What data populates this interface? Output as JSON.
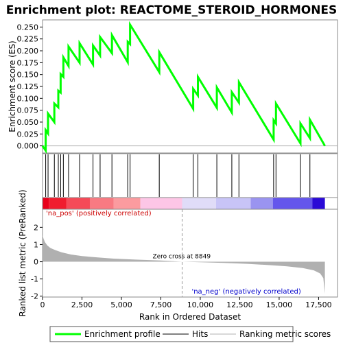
{
  "chart_data": {
    "type": "line",
    "title": "Enrichment plot: REACTOME_STEROID_HORMONES",
    "es_panel": {
      "ylabel": "Enrichment score (ES)",
      "ylim": [
        -0.015,
        0.265
      ],
      "yticks": [
        "0.000",
        "0.025",
        "0.050",
        "0.075",
        "0.100",
        "0.125",
        "0.150",
        "0.175",
        "0.200",
        "0.225",
        "0.250"
      ],
      "series_name": "Enrichment profile",
      "color": "#00ff00",
      "points": [
        [
          0,
          0.0
        ],
        [
          200,
          -0.01
        ],
        [
          200,
          0.033
        ],
        [
          350,
          0.026
        ],
        [
          350,
          0.068
        ],
        [
          750,
          0.05
        ],
        [
          750,
          0.089
        ],
        [
          1000,
          0.081
        ],
        [
          1000,
          0.116
        ],
        [
          1150,
          0.112
        ],
        [
          1150,
          0.151
        ],
        [
          1320,
          0.145
        ],
        [
          1320,
          0.186
        ],
        [
          1650,
          0.168
        ],
        [
          1650,
          0.209
        ],
        [
          2350,
          0.175
        ],
        [
          2350,
          0.216
        ],
        [
          3200,
          0.171
        ],
        [
          3200,
          0.211
        ],
        [
          3650,
          0.19
        ],
        [
          3650,
          0.229
        ],
        [
          4400,
          0.195
        ],
        [
          4400,
          0.233
        ],
        [
          5400,
          0.176
        ],
        [
          5400,
          0.219
        ],
        [
          5550,
          0.214
        ],
        [
          5550,
          0.255
        ],
        [
          7400,
          0.155
        ],
        [
          7400,
          0.197
        ],
        [
          9550,
          0.078
        ],
        [
          9550,
          0.12
        ],
        [
          9850,
          0.106
        ],
        [
          9850,
          0.145
        ],
        [
          11050,
          0.08
        ],
        [
          11050,
          0.123
        ],
        [
          12000,
          0.07
        ],
        [
          12000,
          0.113
        ],
        [
          12450,
          0.091
        ],
        [
          12450,
          0.134
        ],
        [
          14650,
          0.013
        ],
        [
          14650,
          0.054
        ],
        [
          14800,
          0.047
        ],
        [
          14800,
          0.089
        ],
        [
          16350,
          0.005
        ],
        [
          16350,
          0.047
        ],
        [
          16950,
          0.016
        ],
        [
          16950,
          0.055
        ],
        [
          17900,
          0.0
        ]
      ]
    },
    "hits": {
      "series_name": "Hits",
      "positions": [
        200,
        350,
        750,
        1000,
        1150,
        1320,
        1650,
        2350,
        3200,
        3650,
        4400,
        5400,
        5550,
        7400,
        9550,
        9850,
        11050,
        12000,
        12450,
        14650,
        14800,
        16350,
        16950
      ]
    },
    "metric_panel": {
      "ylabel": "Ranked list metric (PreRanked)",
      "ylim": [
        -2.05,
        3.05
      ],
      "yticks": [
        "-2",
        "-1",
        "0",
        "1",
        "2"
      ],
      "series_name": "Ranking metric scores",
      "color": "#b0b0b0",
      "points": [
        [
          0,
          1.55
        ],
        [
          60,
          1.35
        ],
        [
          150,
          1.15
        ],
        [
          300,
          0.95
        ],
        [
          500,
          0.8
        ],
        [
          800,
          0.68
        ],
        [
          1200,
          0.55
        ],
        [
          1800,
          0.42
        ],
        [
          2500,
          0.33
        ],
        [
          3500,
          0.25
        ],
        [
          4500,
          0.18
        ],
        [
          6000,
          0.12
        ],
        [
          7500,
          0.07
        ],
        [
          8849,
          0.0
        ],
        [
          10000,
          -0.03
        ],
        [
          11500,
          -0.07
        ],
        [
          13000,
          -0.12
        ],
        [
          14500,
          -0.2
        ],
        [
          15500,
          -0.27
        ],
        [
          16500,
          -0.37
        ],
        [
          17200,
          -0.5
        ],
        [
          17600,
          -0.68
        ],
        [
          17800,
          -0.95
        ],
        [
          17900,
          -1.85
        ]
      ]
    },
    "xaxis": {
      "label": "Rank in Ordered Dataset",
      "xlim": [
        0,
        18700
      ],
      "ticks": [
        "0",
        "2,500",
        "5,000",
        "7,500",
        "10,000",
        "12,500",
        "15,000",
        "17,500"
      ]
    },
    "annotations": {
      "zero_cross_label": "Zero cross at 8849",
      "zero_cross_rank": 8849,
      "pos_label": "'na_pos' (positively correlated)",
      "neg_label": "'na_neg' (negatively correlated)",
      "pos_color": "#cc0000",
      "neg_color": "#0000cc"
    },
    "gradient_bar": {
      "segments": [
        {
          "from": 0,
          "to": 400,
          "color": "#e8001a"
        },
        {
          "from": 400,
          "to": 1500,
          "color": "#f01c2e"
        },
        {
          "from": 1500,
          "to": 3000,
          "color": "#f54a58"
        },
        {
          "from": 3000,
          "to": 4500,
          "color": "#f87a82"
        },
        {
          "from": 4500,
          "to": 6200,
          "color": "#fb9b9f"
        },
        {
          "from": 6200,
          "to": 8849,
          "color": "#fdc6e6"
        },
        {
          "from": 8849,
          "to": 11000,
          "color": "#e0dcf8"
        },
        {
          "from": 11000,
          "to": 13200,
          "color": "#c8c4f7"
        },
        {
          "from": 13200,
          "to": 14600,
          "color": "#9a94f0"
        },
        {
          "from": 14600,
          "to": 17100,
          "color": "#6456ec"
        },
        {
          "from": 17100,
          "to": 17900,
          "color": "#2a0ad6"
        }
      ]
    },
    "legend": {
      "placement": "bottom",
      "items": [
        {
          "label": "Enrichment profile",
          "color": "#00ff00"
        },
        {
          "label": "Hits",
          "color": "#000000"
        },
        {
          "label": "Ranking metric scores",
          "color": "#b0b0b0"
        }
      ]
    }
  }
}
